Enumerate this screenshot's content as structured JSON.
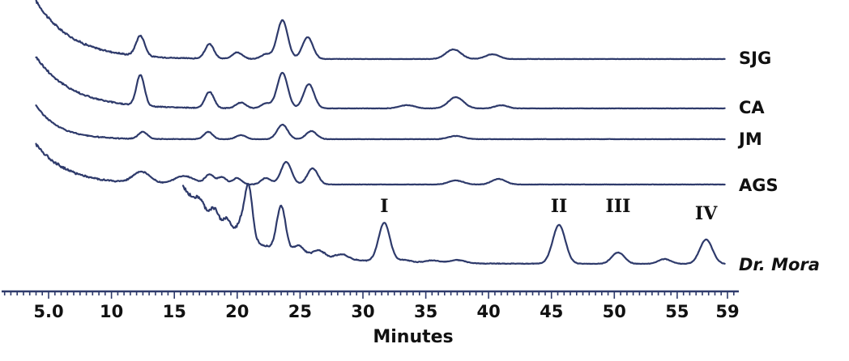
{
  "chart_data": {
    "type": "line",
    "title": "",
    "xlabel": "Minutes",
    "ylabel": "",
    "xlim": [
      3,
      60
    ],
    "grid": false,
    "x_ticks": [
      5.0,
      10,
      15,
      20,
      25,
      30,
      35,
      40,
      45,
      50,
      55,
      59
    ],
    "x_tick_labels": [
      "5.0",
      "10",
      "15",
      "20",
      "25",
      "30",
      "35",
      "40",
      "45",
      "50",
      "55",
      "59"
    ],
    "peak_annotations": [
      {
        "label": "I",
        "x": 31.7
      },
      {
        "label": "II",
        "x": 45.6
      },
      {
        "label": "III",
        "x": 50.3
      },
      {
        "label": "IV",
        "x": 57.3
      }
    ],
    "series": [
      {
        "name": "SJG",
        "label_style": "normal",
        "baseline": 0.0,
        "start": 4.0,
        "end": 58.8,
        "start_level": 72,
        "decay": 0.35,
        "noise": 3.2,
        "peaks": [
          {
            "x": 12.3,
            "h": 25,
            "w": 0.35
          },
          {
            "x": 17.8,
            "h": 18,
            "w": 0.35
          },
          {
            "x": 20.0,
            "h": 8,
            "w": 0.4
          },
          {
            "x": 22.3,
            "h": 6,
            "w": 0.4
          },
          {
            "x": 23.6,
            "h": 48,
            "w": 0.42
          },
          {
            "x": 25.6,
            "h": 27,
            "w": 0.42
          },
          {
            "x": 37.2,
            "h": 12,
            "w": 0.6
          },
          {
            "x": 40.3,
            "h": 6,
            "w": 0.55
          }
        ]
      },
      {
        "name": "CA",
        "label_style": "normal",
        "baseline": 0.0,
        "start": 4.0,
        "end": 58.8,
        "start_level": 64,
        "decay": 0.35,
        "noise": 3.0,
        "peaks": [
          {
            "x": 12.3,
            "h": 38,
            "w": 0.32
          },
          {
            "x": 17.8,
            "h": 20,
            "w": 0.35
          },
          {
            "x": 20.3,
            "h": 7,
            "w": 0.4
          },
          {
            "x": 22.3,
            "h": 6,
            "w": 0.4
          },
          {
            "x": 23.6,
            "h": 44,
            "w": 0.42
          },
          {
            "x": 25.7,
            "h": 30,
            "w": 0.42
          },
          {
            "x": 33.5,
            "h": 4,
            "w": 0.6
          },
          {
            "x": 37.4,
            "h": 14,
            "w": 0.6
          },
          {
            "x": 41.0,
            "h": 4,
            "w": 0.5
          }
        ]
      },
      {
        "name": "JM",
        "label_style": "normal",
        "baseline": 0.0,
        "start": 4.0,
        "end": 58.8,
        "start_level": 42,
        "decay": 0.55,
        "noise": 1.6,
        "peaks": [
          {
            "x": 12.5,
            "h": 9,
            "w": 0.35
          },
          {
            "x": 17.7,
            "h": 9,
            "w": 0.35
          },
          {
            "x": 20.3,
            "h": 5,
            "w": 0.4
          },
          {
            "x": 23.6,
            "h": 18,
            "w": 0.42
          },
          {
            "x": 25.9,
            "h": 10,
            "w": 0.42
          },
          {
            "x": 37.4,
            "h": 4,
            "w": 0.6
          }
        ]
      },
      {
        "name": "AGS",
        "label_style": "normal",
        "baseline": 0.0,
        "start": 4.0,
        "end": 58.8,
        "start_level": 50,
        "decay": 0.4,
        "noise": 3.4,
        "peaks": [
          {
            "x": 12.4,
            "h": 14,
            "w": 0.7
          },
          {
            "x": 15.8,
            "h": 10,
            "w": 0.8
          },
          {
            "x": 17.8,
            "h": 12,
            "w": 0.35
          },
          {
            "x": 18.8,
            "h": 9,
            "w": 0.35
          },
          {
            "x": 20.0,
            "h": 8,
            "w": 0.35
          },
          {
            "x": 22.3,
            "h": 8,
            "w": 0.4
          },
          {
            "x": 23.9,
            "h": 28,
            "w": 0.42
          },
          {
            "x": 26.0,
            "h": 20,
            "w": 0.42
          },
          {
            "x": 37.4,
            "h": 5,
            "w": 0.6
          },
          {
            "x": 40.8,
            "h": 7,
            "w": 0.55
          }
        ]
      },
      {
        "name": "Dr. Mora",
        "label_style": "italic",
        "baseline": 0.0,
        "start": 15.7,
        "end": 58.8,
        "start_level": 95,
        "decay": 0.22,
        "noise": 4.5,
        "peaks": [
          {
            "x": 17.0,
            "h": 10,
            "w": 0.35
          },
          {
            "x": 18.2,
            "h": 14,
            "w": 0.3
          },
          {
            "x": 19.2,
            "h": 12,
            "w": 0.3
          },
          {
            "x": 20.3,
            "h": 16,
            "w": 0.3
          },
          {
            "x": 20.9,
            "h": 66,
            "w": 0.3
          },
          {
            "x": 23.5,
            "h": 55,
            "w": 0.35
          },
          {
            "x": 24.9,
            "h": 10,
            "w": 0.4
          },
          {
            "x": 26.5,
            "h": 8,
            "w": 0.45
          },
          {
            "x": 28.3,
            "h": 6,
            "w": 0.5
          },
          {
            "x": 31.7,
            "h": 48,
            "w": 0.45
          },
          {
            "x": 33.3,
            "h": 3,
            "w": 0.5
          },
          {
            "x": 35.5,
            "h": 3,
            "w": 0.6
          },
          {
            "x": 37.5,
            "h": 4,
            "w": 0.6
          },
          {
            "x": 45.6,
            "h": 48,
            "w": 0.5
          },
          {
            "x": 50.3,
            "h": 14,
            "w": 0.5
          },
          {
            "x": 54.0,
            "h": 6,
            "w": 0.5
          },
          {
            "x": 57.3,
            "h": 30,
            "w": 0.5
          }
        ]
      }
    ]
  }
}
